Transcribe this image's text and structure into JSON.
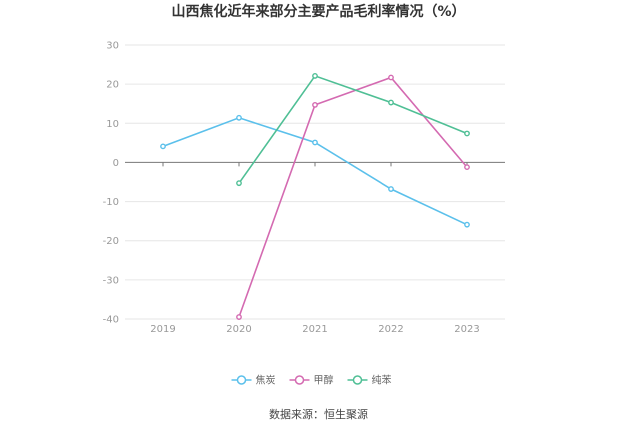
{
  "chart_data": {
    "type": "line",
    "title": "山西焦化近年来部分主要产品毛利率情况（%）",
    "xlabel": "",
    "ylabel": "",
    "categories": [
      "2019",
      "2020",
      "2021",
      "2022",
      "2023"
    ],
    "ylim": [
      -40,
      30
    ],
    "yticks": [
      30,
      20,
      10,
      0,
      -10,
      -20,
      -30,
      -40
    ],
    "grid": true,
    "legend_position": "bottom",
    "series": [
      {
        "name": "焦炭",
        "color": "#5bc0eb",
        "values": [
          4.1,
          11.4,
          5.1,
          -6.8,
          -15.9
        ]
      },
      {
        "name": "甲醇",
        "color": "#d46ab1",
        "values": [
          null,
          -39.5,
          14.7,
          21.7,
          -1.2
        ]
      },
      {
        "name": "纯苯",
        "color": "#4fbf95",
        "values": [
          null,
          -5.3,
          22.1,
          15.3,
          7.4
        ]
      }
    ]
  },
  "footer": {
    "source": "数据来源：恒生聚源"
  }
}
